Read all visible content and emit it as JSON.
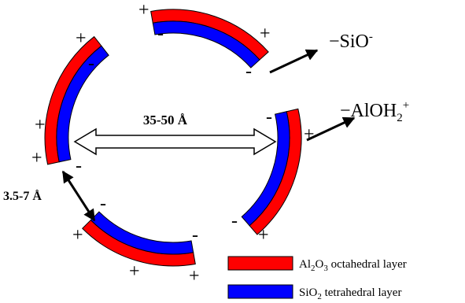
{
  "labels": {
    "pore_size": "35-50 Å",
    "interlayer": "3.5-7 Å",
    "silanol": {
      "base": "−SiO",
      "sup": "-"
    },
    "aluminol": {
      "base": "−AlOH",
      "sub": "2",
      "sup": "+"
    }
  },
  "charges": [
    "+",
    "-",
    "+",
    "-",
    "+",
    "-",
    "+",
    "+",
    "-",
    "-",
    "+",
    "-",
    "+",
    "-",
    "+",
    "-",
    "+",
    "+"
  ],
  "legend": [
    {
      "parts": [
        "Al",
        "2",
        "O",
        "3",
        " octahedral layer"
      ]
    },
    {
      "parts": [
        "SiO",
        "2",
        " tetrahedral layer"
      ]
    }
  ]
}
